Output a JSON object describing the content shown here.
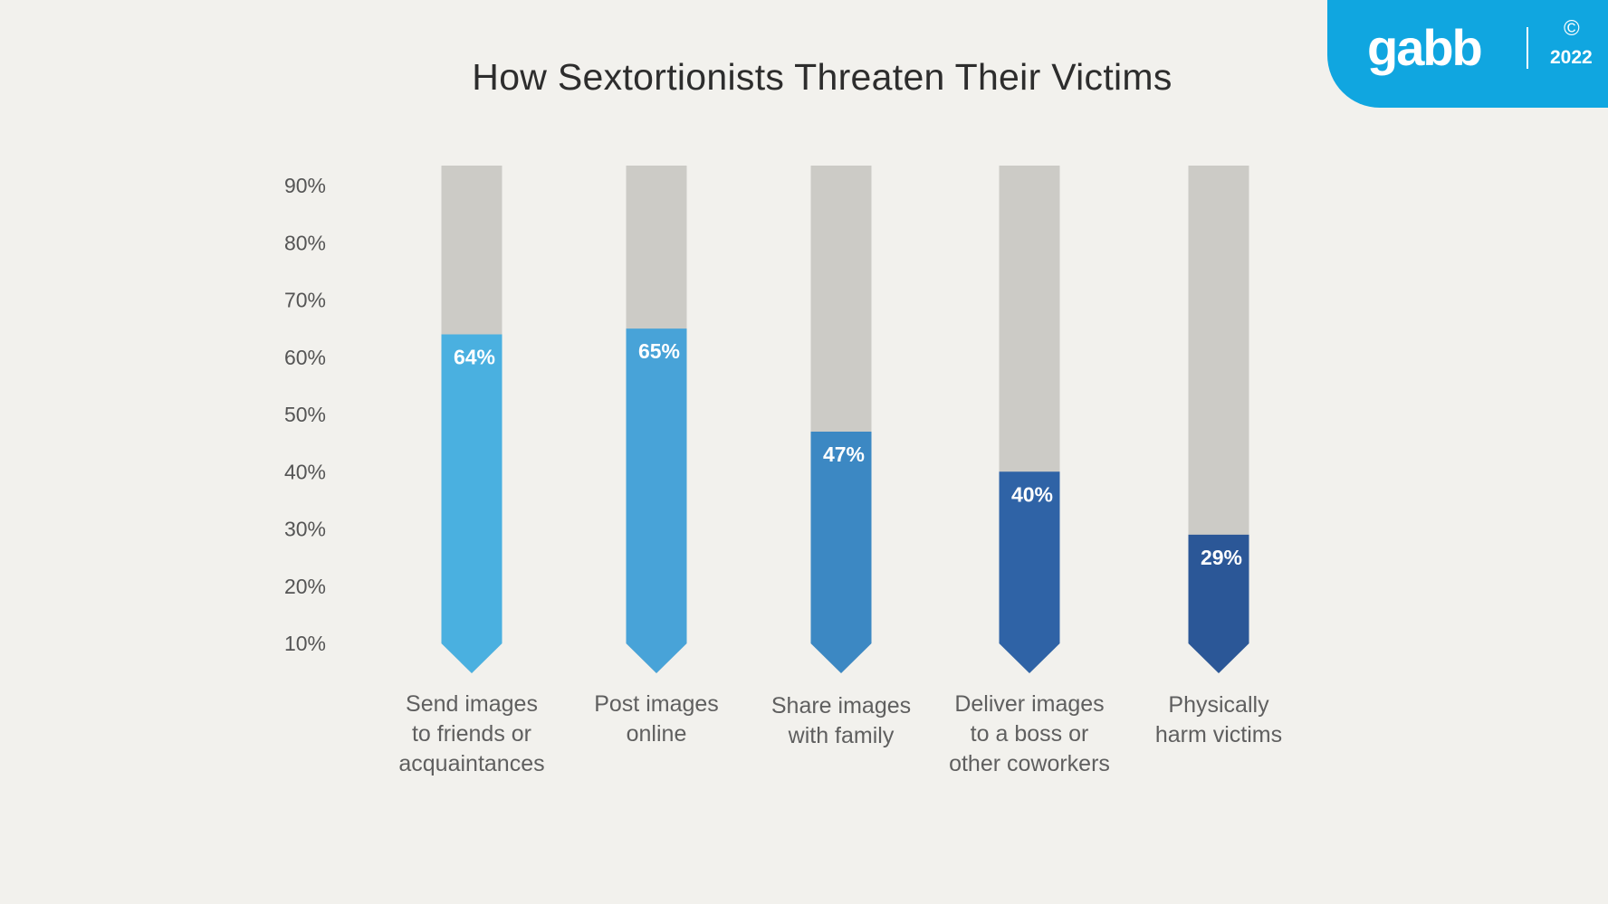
{
  "brand": {
    "logo_text": "gabb",
    "copyright_icon": "copyright-icon",
    "copyright_symbol": "©",
    "year": "2022"
  },
  "colors": {
    "background": "#f2f1ed",
    "badge": "#10a6e0",
    "track": "#cccbc6",
    "bars": [
      "#4ab0e0",
      "#48a3d8",
      "#3c88c3",
      "#2f63a6",
      "#2b5797"
    ]
  },
  "chart_data": {
    "type": "bar",
    "title": "How Sextortionists Threaten Their Victims",
    "categories": [
      "Send images to friends or acquaintances",
      "Post images online",
      "Share images with family",
      "Deliver images to a boss or other coworkers",
      "Physically harm victims"
    ],
    "category_lines": [
      [
        "Send images",
        "to friends or",
        "acquaintances"
      ],
      [
        "Post images",
        "online"
      ],
      [
        "Share images",
        "with family"
      ],
      [
        "Deliver images",
        "to a boss or",
        "other coworkers"
      ],
      [
        "Physically",
        "harm victims"
      ]
    ],
    "values": [
      64,
      65,
      47,
      40,
      29
    ],
    "value_labels": [
      "64%",
      "65%",
      "47%",
      "40%",
      "29%"
    ],
    "y_ticks": [
      90,
      80,
      70,
      60,
      50,
      40,
      30,
      20,
      10
    ],
    "y_tick_labels": [
      "90%",
      "80%",
      "70%",
      "60%",
      "50%",
      "40%",
      "30%",
      "20%",
      "10%"
    ],
    "ylim": [
      10,
      90
    ],
    "grid": false,
    "legend": "none"
  }
}
